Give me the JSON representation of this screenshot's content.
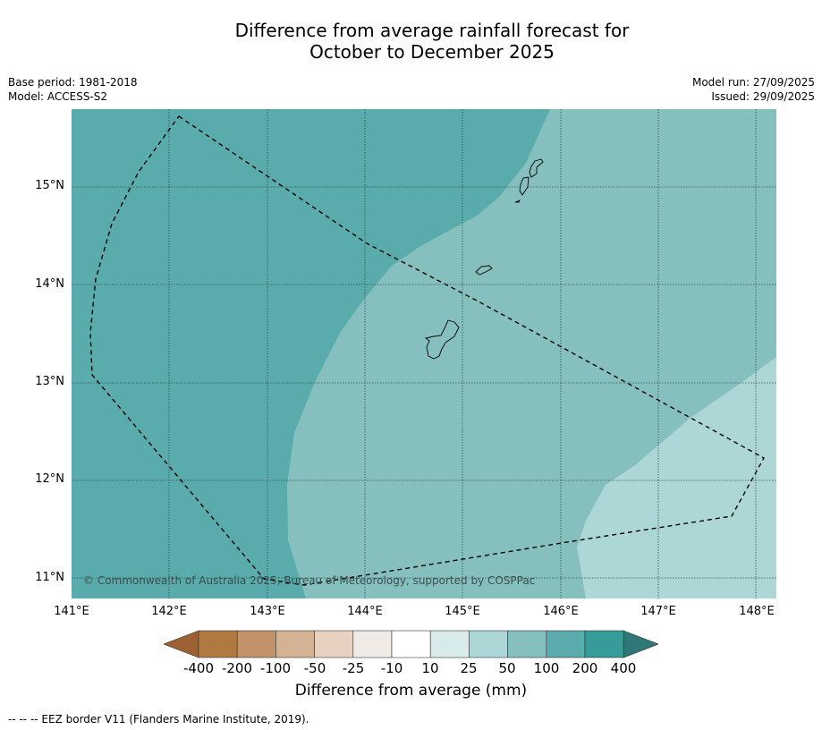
{
  "header": {
    "title_line1": "Difference from average rainfall forecast for",
    "title_line2": "October to December 2025",
    "base_period": "Base period: 1981-2018",
    "model": "Model: ACCESS-S2",
    "model_run": "Model run: 27/09/2025",
    "issued": "Issued: 29/09/2025"
  },
  "axes": {
    "lat_labels": [
      "15°N",
      "14°N",
      "13°N",
      "12°N",
      "11°N"
    ],
    "lon_labels": [
      "141°E",
      "142°E",
      "143°E",
      "144°E",
      "145°E",
      "146°E",
      "147°E",
      "148°E"
    ]
  },
  "map": {
    "extent": {
      "lon_min": 141.0,
      "lon_max": 148.2,
      "lat_min": 10.8,
      "lat_max": 15.8
    },
    "copyright": "© Commonwealth of Australia 2025, Bureau of Meteorology, supported by COSPPac",
    "zones": [
      {
        "range": "100 to 200 mm",
        "color": "#5aabab"
      },
      {
        "range": "50 to 100 mm",
        "color": "#85c0bf"
      },
      {
        "range": "25 to 50 mm",
        "color": "#add7d6"
      }
    ]
  },
  "colorbar": {
    "labels": [
      "-400",
      "-200",
      "-100",
      "-50",
      "-25",
      "-10",
      "10",
      "25",
      "50",
      "100",
      "200",
      "400"
    ],
    "colors": [
      "#9b6133",
      "#b07940",
      "#c2936a",
      "#d4b394",
      "#e7d2c1",
      "#f0ebe7",
      "#ffffff",
      "#d6ebea",
      "#add7d6",
      "#85c0bf",
      "#5aabab",
      "#359c9a",
      "#2f7878"
    ],
    "title": "Difference from average (mm)"
  },
  "footnote": "--  --  -- EEZ border V11 (Flanders Marine Institute, 2019)."
}
